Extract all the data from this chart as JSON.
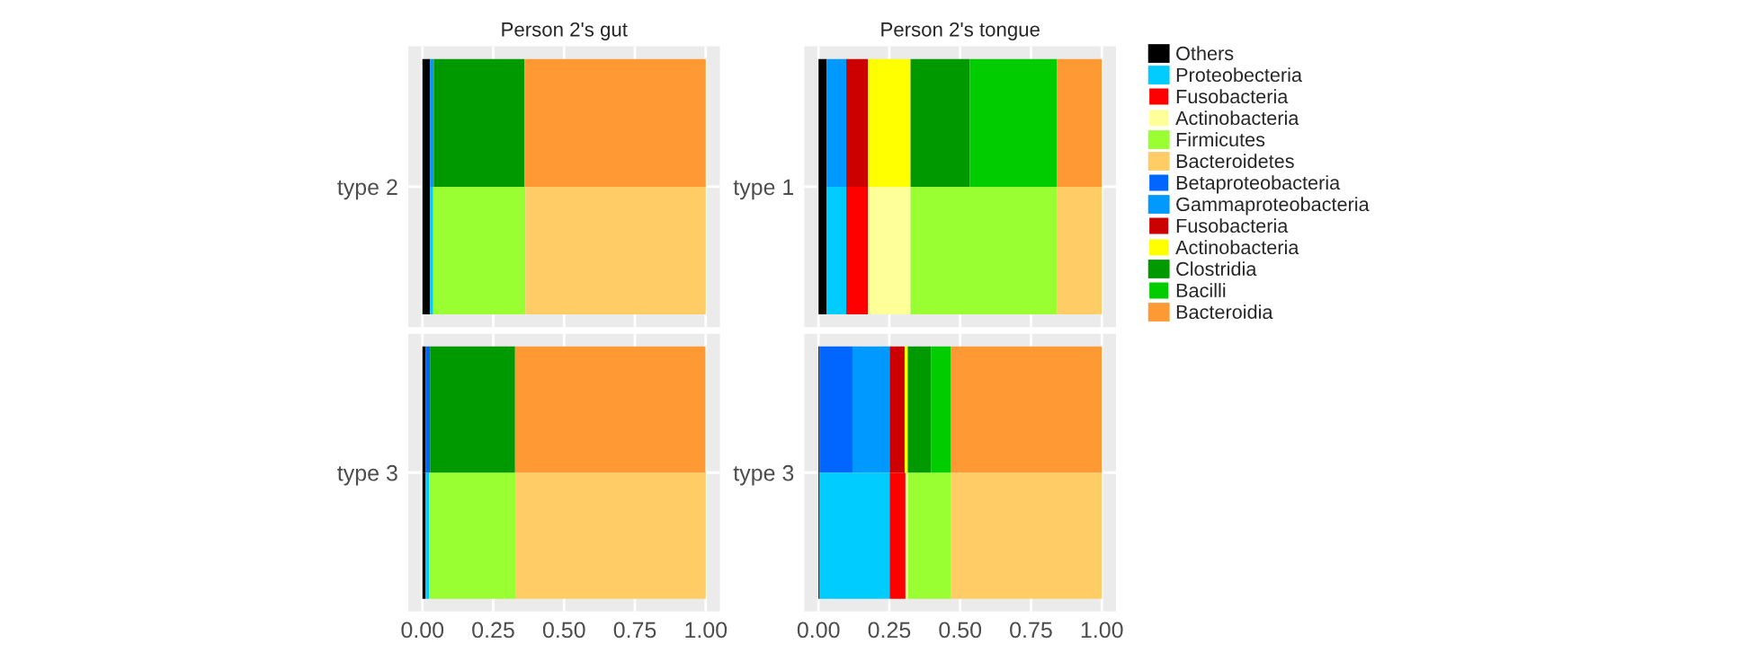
{
  "chart_data": [
    {
      "type": "bar",
      "orientation": "horizontal",
      "stacked": true,
      "title": "Person 2's gut",
      "ylabel": "type 2",
      "categories": [
        null,
        null
      ],
      "xlim": [
        -0.05,
        1.05
      ],
      "xticks": [
        {
          "value": 0,
          "label": null
        },
        {
          "value": 0.25,
          "label": null
        },
        {
          "value": 0.5,
          "label": null
        },
        {
          "value": 0.75,
          "label": null
        },
        {
          "value": 1,
          "label": null
        }
      ],
      "tick_labels": "y",
      "grid": true,
      "legend": "right",
      "series": [
        {
          "name": "Others",
          "color": "#000000",
          "values": [
            0.027,
            0.027
          ]
        },
        {
          "name": "Proteobecteria",
          "color": "#00ccff",
          "values": [
            null,
            0.011
          ]
        },
        {
          "name": "Fusobacteria",
          "color": "#ff0000",
          "values": [
            null,
            null
          ]
        },
        {
          "name": "Actinobacteria",
          "color": "#ffff99",
          "values": [
            null,
            null
          ]
        },
        {
          "name": "Firmicutes",
          "color": "#99ff33",
          "values": [
            null,
            0.326
          ]
        },
        {
          "name": "Bacteroidetes",
          "color": "#ffcc66",
          "values": [
            null,
            0.636
          ]
        },
        {
          "name": "Betaproteobacteria",
          "color": "#0066ff",
          "values": [
            null,
            null
          ]
        },
        {
          "name": "Gammaproteobacteria",
          "color": "#0099ff",
          "values": [
            0.013,
            null
          ]
        },
        {
          "name": "Fusobacteria",
          "color": "#cc0000",
          "values": [
            null,
            null
          ]
        },
        {
          "name": "Actinobacteria",
          "color": "#ffff00",
          "values": [
            null,
            null
          ]
        },
        {
          "name": "Clostridia",
          "color": "#009900",
          "values": [
            0.32,
            null
          ]
        },
        {
          "name": "Bacilli",
          "color": "#00cc00",
          "values": [
            null,
            null
          ]
        },
        {
          "name": "Bacteroidia",
          "color": "#ff9933",
          "values": [
            0.64,
            null
          ]
        }
      ]
    },
    {
      "type": "bar",
      "orientation": "horizontal",
      "stacked": true,
      "title": "Person 2's tongue",
      "ylabel": "type 1",
      "categories": [
        null,
        null
      ],
      "xlim": [
        -0.05,
        1.05
      ],
      "xticks": [
        {
          "value": 0,
          "label": null
        },
        {
          "value": 0.25,
          "label": null
        },
        {
          "value": 0.5,
          "label": null
        },
        {
          "value": 0.75,
          "label": null
        },
        {
          "value": 1,
          "label": null
        }
      ],
      "tick_labels": "y",
      "grid": true,
      "series": [
        {
          "color": "#000000",
          "values": [
            0.029,
            0.029
          ]
        },
        {
          "color": "#00ccff",
          "values": [
            null,
            0.069
          ]
        },
        {
          "color": "#ff0000",
          "values": [
            null,
            0.076
          ]
        },
        {
          "color": "#ffff99",
          "values": [
            null,
            0.151
          ]
        },
        {
          "color": "#99ff33",
          "values": [
            null,
            0.517
          ]
        },
        {
          "color": "#ffcc66",
          "values": [
            null,
            0.158
          ]
        },
        {
          "color": "#0066ff",
          "values": [
            null,
            null
          ]
        },
        {
          "color": "#0099ff",
          "values": [
            0.069,
            null
          ]
        },
        {
          "color": "#cc0000",
          "values": [
            0.076,
            null
          ]
        },
        {
          "color": "#ffff00",
          "values": [
            0.151,
            null
          ]
        },
        {
          "color": "#009900",
          "values": [
            0.209,
            null
          ]
        },
        {
          "color": "#00cc00",
          "values": [
            0.307,
            null
          ]
        },
        {
          "color": "#ff9933",
          "values": [
            0.159,
            null
          ]
        }
      ]
    },
    {
      "type": "bar",
      "orientation": "horizontal",
      "stacked": true,
      "ylabel": "type 3",
      "categories": [
        null,
        null
      ],
      "xlim": [
        -0.05,
        1.05
      ],
      "xticks": [
        {
          "value": 0,
          "label": "0.00"
        },
        {
          "value": 0.25,
          "label": "0.25"
        },
        {
          "value": 0.5,
          "label": "0.50"
        },
        {
          "value": 0.75,
          "label": "0.75"
        },
        {
          "value": 1,
          "label": "1.00"
        }
      ],
      "grid": true,
      "series": [
        {
          "color": "#000000",
          "values": [
            0.011,
            0.011
          ]
        },
        {
          "color": "#00ccff",
          "values": [
            null,
            0.013
          ]
        },
        {
          "color": "#ff0000",
          "values": [
            null,
            null
          ]
        },
        {
          "color": "#ffff99",
          "values": [
            null,
            null
          ]
        },
        {
          "color": "#99ff33",
          "values": [
            null,
            0.304
          ]
        },
        {
          "color": "#ffcc66",
          "values": [
            null,
            0.672
          ]
        },
        {
          "color": "#0066ff",
          "values": [
            0.016,
            null
          ]
        },
        {
          "color": "#0099ff",
          "values": [
            null,
            null
          ]
        },
        {
          "color": "#cc0000",
          "values": [
            null,
            null
          ]
        },
        {
          "color": "#ffff00",
          "values": [
            null,
            null
          ]
        },
        {
          "color": "#009900",
          "values": [
            0.3,
            null
          ]
        },
        {
          "color": "#00cc00",
          "values": [
            null,
            null
          ]
        },
        {
          "color": "#ff9933",
          "values": [
            0.672,
            null
          ]
        }
      ]
    },
    {
      "type": "bar",
      "orientation": "horizontal",
      "stacked": true,
      "ylabel": "type 3",
      "categories": [
        null,
        null
      ],
      "xlim": [
        -0.05,
        1.05
      ],
      "xticks": [
        {
          "value": 0,
          "label": "0.00"
        },
        {
          "value": 0.25,
          "label": "0.25"
        },
        {
          "value": 0.5,
          "label": "0.50"
        },
        {
          "value": 0.75,
          "label": "0.75"
        },
        {
          "value": 1,
          "label": "1.00"
        }
      ],
      "grid": true,
      "series": [
        {
          "color": "#000000",
          "values": [
            0.004,
            0.004
          ]
        },
        {
          "color": "#00ccff",
          "values": [
            null,
            0.247
          ]
        },
        {
          "color": "#ff0000",
          "values": [
            null,
            0.056
          ]
        },
        {
          "color": "#ffff99",
          "values": [
            null,
            0.009
          ]
        },
        {
          "color": "#99ff33",
          "values": [
            null,
            0.151
          ]
        },
        {
          "color": "#ffcc66",
          "values": [
            null,
            0.533
          ]
        },
        {
          "color": "#0066ff",
          "values": [
            0.116,
            null
          ]
        },
        {
          "color": "#0099ff",
          "values": [
            0.131,
            null
          ]
        },
        {
          "color": "#cc0000",
          "values": [
            0.053,
            null
          ]
        },
        {
          "color": "#ffff00",
          "values": [
            0.011,
            null
          ]
        },
        {
          "color": "#009900",
          "values": [
            0.082,
            null
          ]
        },
        {
          "color": "#00cc00",
          "values": [
            0.069,
            null
          ]
        },
        {
          "color": "#ff9933",
          "values": [
            0.534,
            null
          ]
        }
      ]
    }
  ]
}
